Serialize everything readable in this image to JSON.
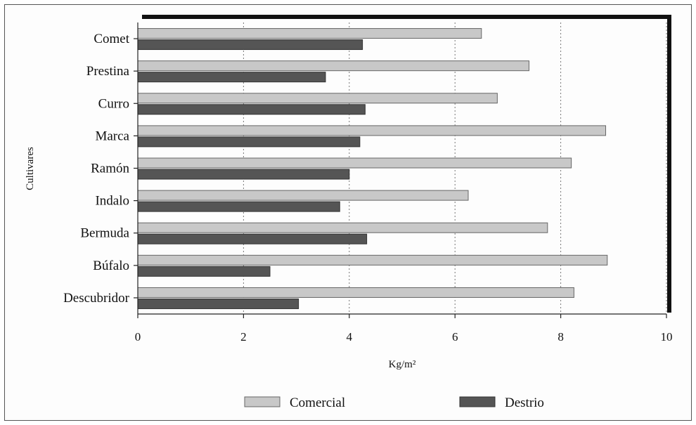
{
  "chart_data": {
    "type": "bar",
    "orientation": "horizontal",
    "title": "",
    "xlabel": "Kg/m²",
    "ylabel": "Cultivares",
    "categories": [
      "Comet",
      "Prestina",
      "Curro",
      "Marca",
      "Ramón",
      "Indalo",
      "Bermuda",
      "Búfalo",
      "Descubridor"
    ],
    "series": [
      {
        "name": "Comercial",
        "color": "#c8c8c8",
        "values": [
          6.5,
          7.4,
          6.8,
          8.85,
          8.2,
          6.25,
          7.75,
          8.88,
          8.25
        ]
      },
      {
        "name": "Destrio",
        "color": "#555555",
        "values": [
          4.25,
          3.55,
          4.3,
          4.2,
          4.0,
          3.82,
          4.33,
          2.5,
          3.04
        ]
      }
    ],
    "xlim": [
      0,
      10
    ],
    "xticks": [
      0,
      2,
      4,
      6,
      8,
      10
    ],
    "grid": "vertical-dotted",
    "legend_position": "bottom"
  }
}
